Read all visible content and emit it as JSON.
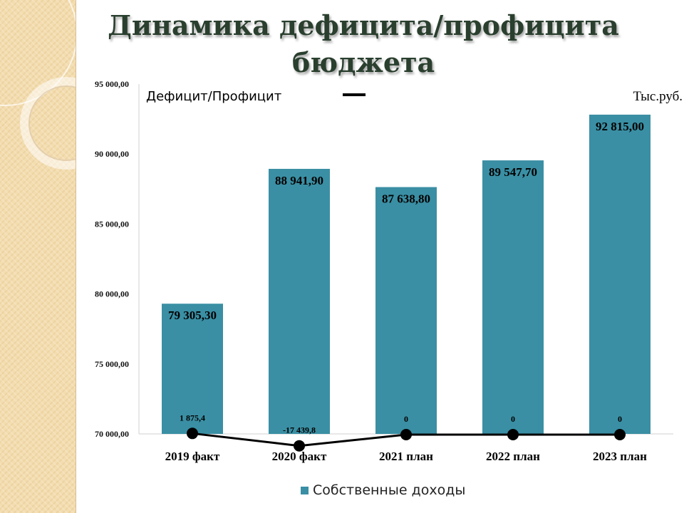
{
  "title": "Динамика дефицита/профицита бюджета",
  "deficit_label": "Дефицит/Профицит",
  "unit_label": "Тыс.руб.",
  "legend": {
    "label": "Собственные доходы"
  },
  "chart_data": {
    "type": "bar",
    "categories": [
      "2019 факт",
      "2020 факт",
      "2021 план",
      "2022 план",
      "2023 план"
    ],
    "ylim": [
      70000,
      95000
    ],
    "yticks": [
      70000,
      75000,
      80000,
      85000,
      90000,
      95000
    ],
    "ytick_labels": [
      "70 000,00",
      "75 000,00",
      "80 000,00",
      "85 000,00",
      "90 000,00",
      "95 000,00"
    ],
    "series": [
      {
        "name": "Собственные доходы",
        "type": "bar",
        "color": "#3a8fa4",
        "values": [
          79305.3,
          88941.9,
          87638.8,
          89547.7,
          92815.0
        ],
        "labels": [
          "79 305,30",
          "88 941,90",
          "87 638,80",
          "89 547,70",
          "92 815,00"
        ]
      },
      {
        "type": "line",
        "color": "#000000",
        "values": [
          1875.4,
          -17439.8,
          0,
          0,
          0
        ],
        "labels": [
          "1 875,4",
          "-17 439,8",
          "0",
          "0",
          "0"
        ]
      }
    ],
    "grid": false,
    "legend_position": "bottom"
  }
}
